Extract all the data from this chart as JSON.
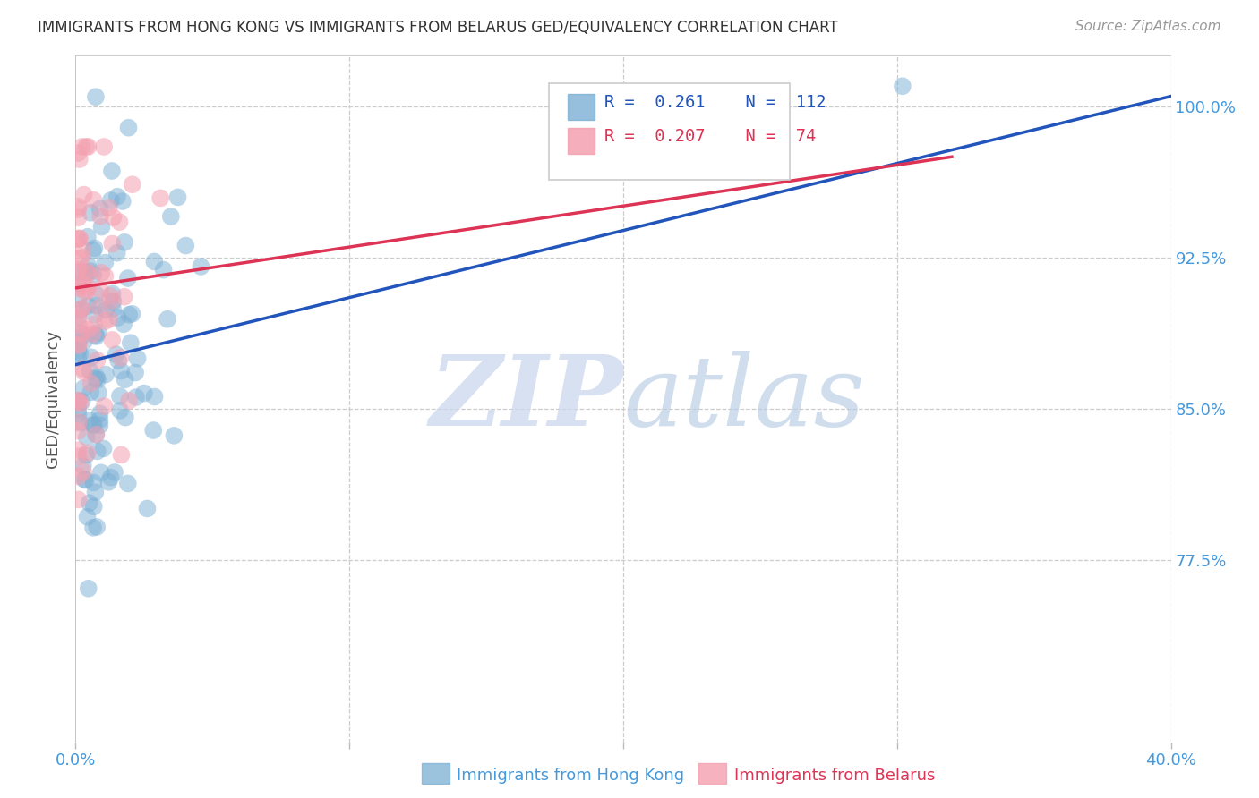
{
  "title": "IMMIGRANTS FROM HONG KONG VS IMMIGRANTS FROM BELARUS GED/EQUIVALENCY CORRELATION CHART",
  "source": "Source: ZipAtlas.com",
  "ylabel": "GED/Equivalency",
  "ytick_labels": [
    "100.0%",
    "92.5%",
    "85.0%",
    "77.5%"
  ],
  "ytick_values": [
    1.0,
    0.925,
    0.85,
    0.775
  ],
  "xlim": [
    0.0,
    0.4
  ],
  "ylim": [
    0.685,
    1.025
  ],
  "hk_color": "#7bafd4",
  "belarus_color": "#f4a0b0",
  "hk_line_color": "#2255bb",
  "belarus_line_color": "#dd3355",
  "hk_R": 0.261,
  "hk_N": 112,
  "belarus_R": 0.207,
  "belarus_N": 74,
  "watermark": "ZIPatlas",
  "legend_label_hk": "Immigrants from Hong Kong",
  "legend_label_belarus": "Immigrants from Belarus",
  "hk_line_x0": 0.0,
  "hk_line_y0": 0.872,
  "hk_line_x1": 0.4,
  "hk_line_y1": 1.005,
  "belarus_line_x0": 0.0,
  "belarus_line_y0": 0.91,
  "belarus_line_x1": 0.32,
  "belarus_line_y1": 0.975,
  "grid_color": "#cccccc",
  "tick_color": "#4499dd",
  "title_color": "#333333",
  "source_color": "#999999"
}
